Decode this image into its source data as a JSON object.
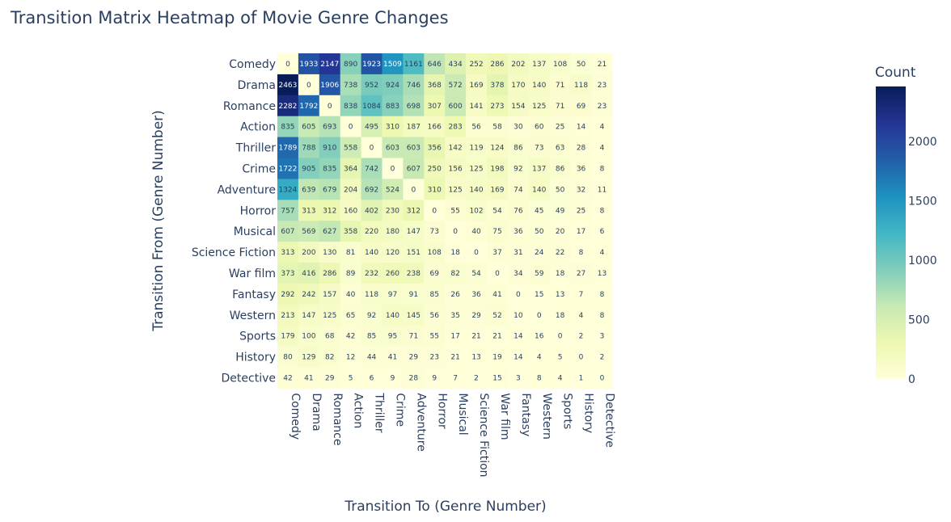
{
  "chart_data": {
    "type": "heatmap",
    "title": "Transition Matrix Heatmap of Movie Genre Changes",
    "xlabel": "Transition To (Genre Number)",
    "ylabel": "Transition From (Genre Number)",
    "colorbar_title": "Count",
    "colorbar_ticks": [
      0,
      500,
      1000,
      1500,
      2000
    ],
    "zmin": 0,
    "zmax": 2463,
    "colorscale": [
      "#ffffd9",
      "#edf8b1",
      "#c7e9b4",
      "#7fcdbb",
      "#41b6c4",
      "#1d91c0",
      "#225ea8",
      "#253494",
      "#081d58"
    ],
    "x_categories": [
      "Comedy",
      "Drama",
      "Romance",
      "Action",
      "Thriller",
      "Crime",
      "Adventure",
      "Horror",
      "Musical",
      "Science Fiction",
      "War film",
      "Fantasy",
      "Western",
      "Sports",
      "History",
      "Detective"
    ],
    "y_categories": [
      "Comedy",
      "Drama",
      "Romance",
      "Action",
      "Thriller",
      "Crime",
      "Adventure",
      "Horror",
      "Musical",
      "Science Fiction",
      "War film",
      "Fantasy",
      "Western",
      "Sports",
      "History",
      "Detective"
    ],
    "values": [
      [
        0,
        1933,
        2147,
        890,
        1923,
        1509,
        1161,
        646,
        434,
        252,
        286,
        202,
        137,
        108,
        50,
        21
      ],
      [
        2463,
        0,
        1906,
        738,
        952,
        924,
        746,
        368,
        572,
        169,
        378,
        170,
        140,
        71,
        118,
        23
      ],
      [
        2282,
        1792,
        0,
        838,
        1084,
        883,
        698,
        307,
        600,
        141,
        273,
        154,
        125,
        71,
        69,
        23
      ],
      [
        835,
        605,
        693,
        0,
        495,
        310,
        187,
        166,
        283,
        56,
        58,
        30,
        60,
        25,
        14,
        4
      ],
      [
        1789,
        788,
        910,
        558,
        0,
        603,
        603,
        356,
        142,
        119,
        124,
        86,
        73,
        63,
        28,
        4
      ],
      [
        1722,
        905,
        835,
        364,
        742,
        0,
        607,
        250,
        156,
        125,
        198,
        92,
        137,
        86,
        36,
        8
      ],
      [
        1324,
        639,
        679,
        204,
        692,
        524,
        0,
        310,
        125,
        140,
        169,
        74,
        140,
        50,
        32,
        11
      ],
      [
        757,
        313,
        312,
        160,
        402,
        230,
        312,
        0,
        55,
        102,
        54,
        76,
        45,
        49,
        25,
        8
      ],
      [
        607,
        569,
        627,
        358,
        220,
        180,
        147,
        73,
        0,
        40,
        75,
        36,
        50,
        20,
        17,
        6
      ],
      [
        313,
        200,
        130,
        81,
        140,
        120,
        151,
        108,
        18,
        0,
        37,
        31,
        24,
        22,
        8,
        4
      ],
      [
        373,
        416,
        286,
        89,
        232,
        260,
        238,
        69,
        82,
        54,
        0,
        34,
        59,
        18,
        27,
        13
      ],
      [
        292,
        242,
        157,
        40,
        118,
        97,
        91,
        85,
        26,
        36,
        41,
        0,
        15,
        13,
        7,
        8
      ],
      [
        213,
        147,
        125,
        65,
        92,
        140,
        145,
        56,
        35,
        29,
        52,
        10,
        0,
        18,
        4,
        8
      ],
      [
        179,
        100,
        68,
        42,
        85,
        95,
        71,
        55,
        17,
        21,
        21,
        14,
        16,
        0,
        2,
        3
      ],
      [
        80,
        129,
        82,
        12,
        44,
        41,
        29,
        23,
        21,
        13,
        19,
        14,
        4,
        5,
        0,
        2
      ],
      [
        42,
        41,
        29,
        5,
        6,
        9,
        28,
        9,
        7,
        2,
        15,
        3,
        8,
        4,
        1,
        0
      ]
    ]
  }
}
